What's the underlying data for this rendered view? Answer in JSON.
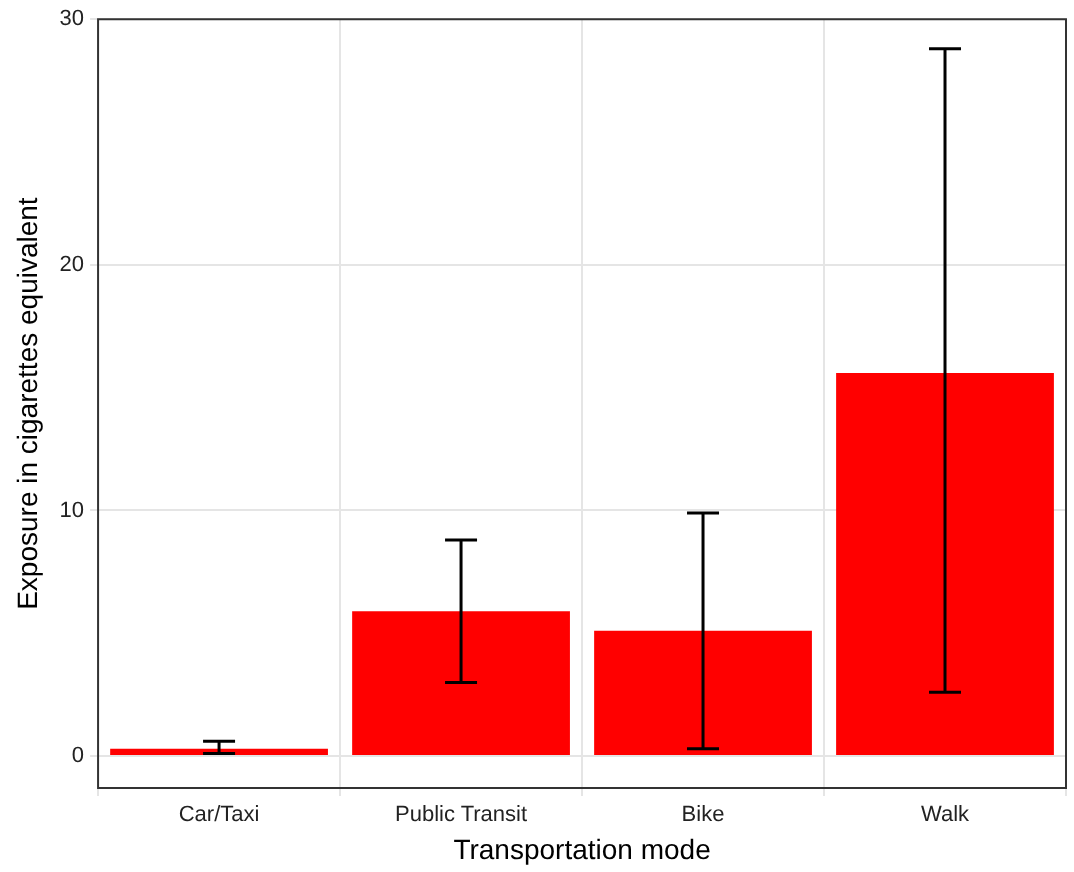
{
  "chart_data": {
    "type": "bar",
    "xlabel": "Transportation mode",
    "ylabel": "Exposure in cigarettes equivalent",
    "categories": [
      "Car/Taxi",
      "Public Transit",
      "Bike",
      "Walk"
    ],
    "values": [
      0.3,
      5.9,
      5.1,
      15.6
    ],
    "errors": [
      [
        0.1,
        0.6
      ],
      [
        3.0,
        8.8
      ],
      [
        0.3,
        9.9
      ],
      [
        2.6,
        28.8
      ]
    ],
    "color": "#ff0000",
    "ylim": [
      -1.3,
      30
    ],
    "yticks": [
      0,
      10,
      20,
      30
    ],
    "grid": true
  }
}
